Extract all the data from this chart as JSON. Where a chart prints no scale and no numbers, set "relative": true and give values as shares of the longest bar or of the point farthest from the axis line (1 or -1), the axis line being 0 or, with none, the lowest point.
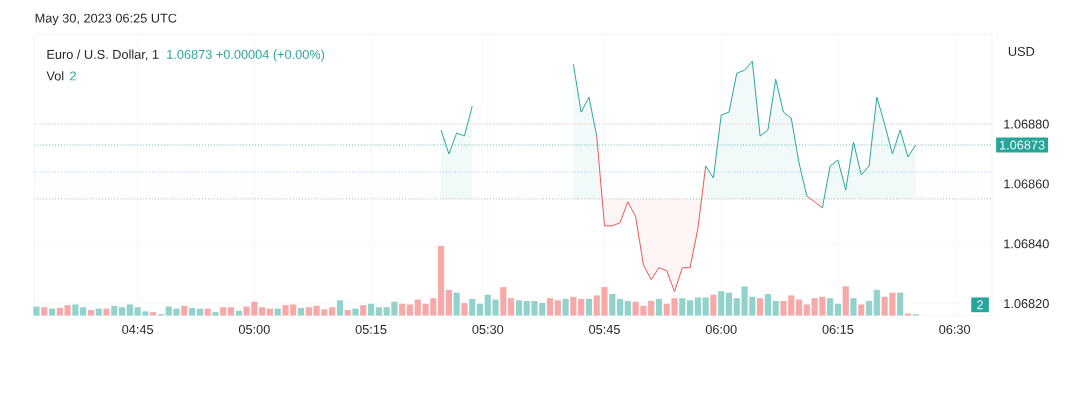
{
  "chart_data": [
    {
      "type": "area",
      "title": "Euro / U.S. Dollar, 1",
      "subtitle": "1.06873 +0.00004 (+0.00%)",
      "ylabel": "USD",
      "annotations": [
        "May 30, 2023 06:25 UTC"
      ],
      "series": [
        {
          "type": "area",
          "color": "#26a69a",
          "x": [
            5.4,
            5.4167,
            5.4333,
            5.45,
            5.4667,
            5.4833,
            5.6833,
            5.7,
            5.7167,
            5.7333,
            5.75,
            5.9667,
            5.9833,
            6,
            6.0167,
            6.0333,
            6.05,
            6.0667,
            6.0833,
            6.1,
            6.1167,
            6.1333,
            6.15,
            6.1667,
            6.1833,
            6.2,
            6.2167,
            6.2333,
            6.25,
            6.2667,
            6.2833,
            6.3,
            6.3167,
            6.3333,
            6.35,
            6.3667,
            6.3833,
            6.4,
            6.4167
          ],
          "values": [
            1.06878,
            1.0687,
            1.06877,
            1.06876,
            1.06886,
            null,
            1.069,
            1.06884,
            1.06889,
            1.06876,
            null,
            1.06866,
            1.06862,
            1.06883,
            1.06884,
            1.06897,
            1.06898,
            1.06901,
            1.06876,
            1.06878,
            1.06895,
            1.06884,
            1.06882,
            1.06867,
            1.06856,
            null,
            1.06852,
            1.06866,
            1.06868,
            1.06858,
            1.06874,
            1.06863,
            1.06866,
            1.06889,
            1.0688,
            1.0687,
            1.06878,
            1.06869,
            1.06873
          ]
        },
        {
          "type": "area",
          "color": "#ef5350",
          "x": [
            5.7333,
            5.75,
            5.7667,
            5.7833,
            5.8,
            5.8167,
            5.8333,
            5.85,
            5.8667,
            5.8833,
            5.9,
            5.9167,
            5.9333,
            5.95,
            5.9667,
            5.9833,
            6.1833,
            6.2,
            6.2167
          ],
          "values": [
            1.06876,
            1.06846,
            1.06846,
            1.06847,
            1.06854,
            1.06849,
            1.06833,
            1.06828,
            1.06832,
            1.06831,
            1.06824,
            1.06832,
            1.06832,
            1.06845,
            1.06866,
            null,
            1.06856,
            1.06854,
            1.06852
          ]
        }
      ],
      "xlim": [
        4.529,
        6.58
      ],
      "ylim": [
        1.06816,
        1.0691
      ],
      "xticks": [
        {
          "value": 4.75,
          "label": "04:45"
        },
        {
          "value": 5,
          "label": "05:00"
        },
        {
          "value": 5.25,
          "label": "05:15"
        },
        {
          "value": 5.5,
          "label": "05:30"
        },
        {
          "value": 5.75,
          "label": "05:45"
        },
        {
          "value": 6,
          "label": "06:00"
        },
        {
          "value": 6.25,
          "label": "06:15"
        },
        {
          "value": 6.5,
          "label": "06:30"
        }
      ],
      "yticks": [
        {
          "value": 1.0682,
          "label": "1.06820"
        },
        {
          "value": 1.0684,
          "label": "1.06840"
        },
        {
          "value": 1.0686,
          "label": "1.06860"
        },
        {
          "value": 1.0688,
          "label": "1.06880"
        }
      ],
      "grid": true,
      "ref_lines": [
        {
          "axis": "y",
          "value": 1.0688,
          "color": "#ef5350",
          "line_style": "dotted"
        },
        {
          "axis": "y",
          "value": 1.06873,
          "label": "1.06873",
          "color": "#26a69a",
          "line_style": "dotted"
        },
        {
          "axis": "y",
          "value": 1.06864,
          "color": "#2962ff",
          "line_style": "dotted"
        },
        {
          "axis": "y",
          "value": 1.06855,
          "color": "#9598a1",
          "line_style": "dotted"
        }
      ]
    },
    {
      "type": "bar",
      "title": "Vol",
      "annotations": [
        "2",
        "2"
      ],
      "relative": true,
      "tick_labels": false,
      "xlim": [
        4.529,
        6.58
      ],
      "x": [
        4.5333,
        4.55,
        4.5667,
        4.5833,
        4.6,
        4.6167,
        4.6333,
        4.65,
        4.6667,
        4.6833,
        4.7,
        4.7167,
        4.7333,
        4.75,
        4.7667,
        4.7833,
        4.8,
        4.8167,
        4.8333,
        4.85,
        4.8667,
        4.8833,
        4.9,
        4.9167,
        4.9333,
        4.95,
        4.9667,
        4.9833,
        5,
        5.0167,
        5.0333,
        5.05,
        5.0667,
        5.0833,
        5.1,
        5.1167,
        5.1333,
        5.15,
        5.1667,
        5.1833,
        5.2,
        5.2167,
        5.2333,
        5.25,
        5.2667,
        5.2833,
        5.3,
        5.3167,
        5.3333,
        5.35,
        5.3667,
        5.3833,
        5.4,
        5.4167,
        5.4333,
        5.45,
        5.4667,
        5.4833,
        5.5,
        5.5167,
        5.5333,
        5.55,
        5.5667,
        5.5833,
        5.6,
        5.6167,
        5.6333,
        5.65,
        5.6667,
        5.6833,
        5.7,
        5.7167,
        5.7333,
        5.75,
        5.7667,
        5.7833,
        5.8,
        5.8167,
        5.8333,
        5.85,
        5.8667,
        5.8833,
        5.9,
        5.9167,
        5.9333,
        5.95,
        5.9667,
        5.9833,
        6,
        6.0167,
        6.0333,
        6.05,
        6.0667,
        6.0833,
        6.1,
        6.1167,
        6.1333,
        6.15,
        6.1667,
        6.1833,
        6.2,
        6.2167,
        6.2333,
        6.25,
        6.2667,
        6.2833,
        6.3,
        6.3167,
        6.3333,
        6.35,
        6.3667,
        6.3833,
        6.4,
        6.4167
      ],
      "values": [
        0.13,
        0.12,
        0.1,
        0.11,
        0.15,
        0.16,
        0.12,
        0.08,
        0.1,
        0.1,
        0.14,
        0.12,
        0.16,
        0.12,
        0.06,
        0.05,
        0.02,
        0.13,
        0.1,
        0.14,
        0.11,
        0.1,
        0.1,
        0.05,
        0.12,
        0.12,
        0.07,
        0.13,
        0.2,
        0.12,
        0.1,
        0.1,
        0.15,
        0.16,
        0.11,
        0.12,
        0.14,
        0.09,
        0.12,
        0.22,
        0.08,
        0.1,
        0.15,
        0.17,
        0.12,
        0.12,
        0.2,
        0.17,
        0.16,
        0.23,
        0.17,
        0.25,
        1,
        0.37,
        0.33,
        0.18,
        0.24,
        0.17,
        0.3,
        0.23,
        0.41,
        0.25,
        0.22,
        0.21,
        0.21,
        0.18,
        0.25,
        0.22,
        0.24,
        0.27,
        0.24,
        0.24,
        0.29,
        0.41,
        0.31,
        0.24,
        0.21,
        0.2,
        0.14,
        0.21,
        0.24,
        0.17,
        0.25,
        0.25,
        0.22,
        0.26,
        0.26,
        0.3,
        0.35,
        0.33,
        0.25,
        0.42,
        0.27,
        0.25,
        0.31,
        0.21,
        0.21,
        0.29,
        0.23,
        0.16,
        0.25,
        0.27,
        0.25,
        0.17,
        0.42,
        0.25,
        0.16,
        0.21,
        0.37,
        0.27,
        0.33,
        0.33,
        0.03,
        0.02
      ],
      "colors": [
        "#92d2cc",
        "#f7a9a7",
        "#92d2cc",
        "#f7a9a7",
        "#f7a9a7",
        "#92d2cc",
        "#92d2cc",
        "#f7a9a7",
        "#92d2cc",
        "#f7a9a7",
        "#92d2cc",
        "#92d2cc",
        "#92d2cc",
        "#92d2cc",
        "#92d2cc",
        "#f7a9a7",
        "#92d2cc",
        "#92d2cc",
        "#92d2cc",
        "#f7a9a7",
        "#92d2cc",
        "#92d2cc",
        "#f7a9a7",
        "#92d2cc",
        "#f7a9a7",
        "#f7a9a7",
        "#92d2cc",
        "#f7a9a7",
        "#f7a9a7",
        "#f7a9a7",
        "#f7a9a7",
        "#92d2cc",
        "#f7a9a7",
        "#f7a9a7",
        "#92d2cc",
        "#f7a9a7",
        "#f7a9a7",
        "#f7a9a7",
        "#f7a9a7",
        "#92d2cc",
        "#f7a9a7",
        "#92d2cc",
        "#f7a9a7",
        "#92d2cc",
        "#92d2cc",
        "#92d2cc",
        "#92d2cc",
        "#f7a9a7",
        "#f7a9a7",
        "#f7a9a7",
        "#f7a9a7",
        "#f7a9a7",
        "#f7a9a7",
        "#f7a9a7",
        "#92d2cc",
        "#f7a9a7",
        "#92d2cc",
        "#92d2cc",
        "#92d2cc",
        "#92d2cc",
        "#f7a9a7",
        "#f7a9a7",
        "#92d2cc",
        "#92d2cc",
        "#92d2cc",
        "#92d2cc",
        "#f7a9a7",
        "#f7a9a7",
        "#92d2cc",
        "#f7a9a7",
        "#f7a9a7",
        "#92d2cc",
        "#f7a9a7",
        "#f7a9a7",
        "#92d2cc",
        "#92d2cc",
        "#92d2cc",
        "#f7a9a7",
        "#f7a9a7",
        "#f7a9a7",
        "#92d2cc",
        "#f7a9a7",
        "#f7a9a7",
        "#92d2cc",
        "#92d2cc",
        "#92d2cc",
        "#92d2cc",
        "#f7a9a7",
        "#92d2cc",
        "#92d2cc",
        "#92d2cc",
        "#92d2cc",
        "#92d2cc",
        "#f7a9a7",
        "#92d2cc",
        "#92d2cc",
        "#f7a9a7",
        "#f7a9a7",
        "#f7a9a7",
        "#f7a9a7",
        "#f7a9a7",
        "#f7a9a7",
        "#92d2cc",
        "#92d2cc",
        "#f7a9a7",
        "#92d2cc",
        "#f7a9a7",
        "#92d2cc",
        "#92d2cc",
        "#f7a9a7",
        "#f7a9a7",
        "#92d2cc",
        "#f7a9a7",
        "#92d2cc"
      ]
    }
  ]
}
